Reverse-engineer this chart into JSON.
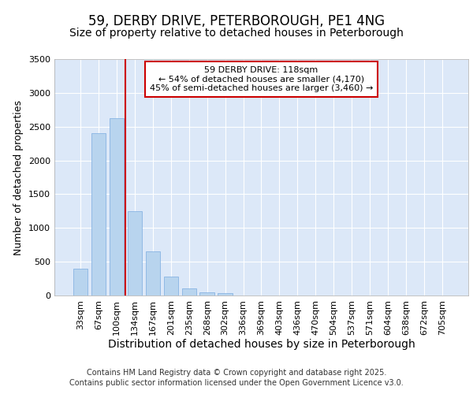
{
  "title1": "59, DERBY DRIVE, PETERBOROUGH, PE1 4NG",
  "title2": "Size of property relative to detached houses in Peterborough",
  "xlabel": "Distribution of detached houses by size in Peterborough",
  "ylabel": "Number of detached properties",
  "categories": [
    "33sqm",
    "67sqm",
    "100sqm",
    "134sqm",
    "167sqm",
    "201sqm",
    "235sqm",
    "268sqm",
    "302sqm",
    "336sqm",
    "369sqm",
    "403sqm",
    "436sqm",
    "470sqm",
    "504sqm",
    "537sqm",
    "571sqm",
    "604sqm",
    "638sqm",
    "672sqm",
    "705sqm"
  ],
  "values": [
    400,
    2400,
    2620,
    1250,
    650,
    280,
    100,
    50,
    30,
    5,
    2,
    1,
    0,
    0,
    0,
    0,
    0,
    0,
    0,
    0,
    0
  ],
  "bar_color": "#b8d4ee",
  "bar_edge_color": "#7aace0",
  "ylim": [
    0,
    3500
  ],
  "yticks": [
    0,
    500,
    1000,
    1500,
    2000,
    2500,
    3000,
    3500
  ],
  "red_line_x": 2.5,
  "annotation_title": "59 DERBY DRIVE: 118sqm",
  "annotation_line1": "← 54% of detached houses are smaller (4,170)",
  "annotation_line2": "45% of semi-detached houses are larger (3,460) →",
  "footer1": "Contains HM Land Registry data © Crown copyright and database right 2025.",
  "footer2": "Contains public sector information licensed under the Open Government Licence v3.0.",
  "background_color": "#ffffff",
  "plot_bg_color": "#dce8f8",
  "grid_color": "#ffffff",
  "annotation_box_color": "#ffffff",
  "annotation_box_edge": "#cc0000",
  "red_line_color": "#cc0000",
  "title_fontsize": 12,
  "subtitle_fontsize": 10,
  "ylabel_fontsize": 9,
  "xlabel_fontsize": 10,
  "tick_fontsize": 8,
  "footer_fontsize": 7
}
